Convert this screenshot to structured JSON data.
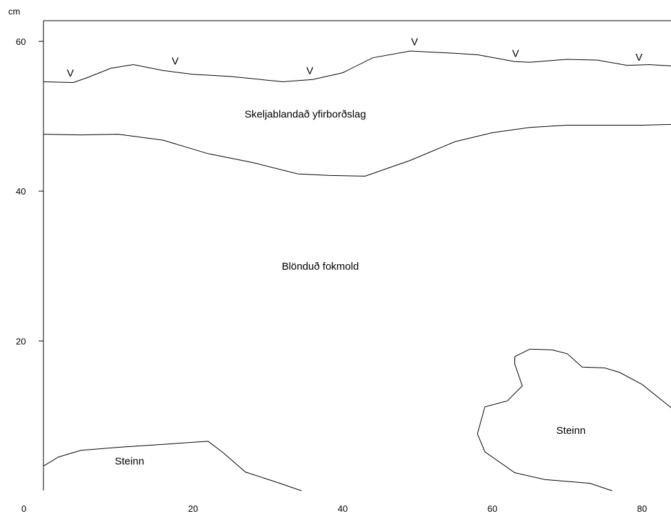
{
  "chart_data": {
    "type": "line",
    "ylabel": "cm",
    "x_ticks": [
      20,
      40,
      60,
      80
    ],
    "y_ticks": [
      20,
      40,
      60
    ],
    "origin_label": "0",
    "xlim": [
      0,
      84
    ],
    "ylim": [
      0,
      62
    ],
    "series": [
      {
        "x": [
          0,
          4,
          6,
          9,
          12,
          16,
          20,
          25,
          32,
          36,
          40,
          44,
          49,
          55,
          58,
          63,
          65,
          70,
          74,
          78,
          81,
          84
        ],
        "y": [
          54.6,
          54.5,
          55.2,
          56.4,
          56.9,
          56.1,
          55.6,
          55.3,
          54.6,
          54.9,
          55.8,
          57.8,
          58.7,
          58.4,
          58.2,
          57.3,
          57.2,
          57.6,
          57.5,
          56.8,
          56.9,
          56.7
        ]
      },
      {
        "x": [
          0,
          5,
          10,
          16,
          22,
          28,
          34,
          38,
          43,
          49,
          55,
          60,
          65,
          70,
          74,
          80,
          84
        ],
        "y": [
          47.6,
          47.5,
          47.6,
          46.8,
          45.0,
          43.8,
          42.3,
          42.1,
          42.0,
          44.1,
          46.6,
          47.8,
          48.5,
          48.8,
          48.8,
          48.8,
          48.9
        ]
      },
      {
        "x": [
          0,
          2,
          5,
          10,
          16,
          22,
          24,
          27,
          31,
          34.5
        ],
        "y": [
          3.3,
          4.5,
          5.4,
          5.8,
          6.2,
          6.6,
          5.1,
          2.5,
          1.2,
          0
        ]
      },
      {
        "x": [
          76,
          73,
          67,
          63,
          59,
          58,
          59,
          62,
          64,
          63,
          63,
          65,
          68,
          70,
          72,
          75,
          77,
          80,
          84
        ],
        "y": [
          0,
          1.0,
          1.5,
          2.4,
          5.2,
          7.6,
          11.2,
          12.0,
          14.0,
          16.9,
          17.9,
          18.9,
          18.8,
          18.3,
          16.5,
          16.4,
          15.8,
          14.2,
          11.0
        ]
      }
    ],
    "annotations": [
      {
        "text": "Skeljablandað yfirborðslag",
        "x": 35,
        "y": 49.8
      },
      {
        "text": "Blönduð fokmold",
        "x": 37,
        "y": 29.5
      },
      {
        "text": "Steinn",
        "x": 11.5,
        "y": 3.5
      },
      {
        "text": "Steinn",
        "x": 70.5,
        "y": 7.6
      }
    ],
    "markers": [
      {
        "text": "V",
        "x": 3.6,
        "y": 55.3
      },
      {
        "text": "V",
        "x": 17.6,
        "y": 56.9
      },
      {
        "text": "V",
        "x": 35.6,
        "y": 55.6
      },
      {
        "text": "V",
        "x": 49.6,
        "y": 59.5
      },
      {
        "text": "V",
        "x": 63.1,
        "y": 57.9
      },
      {
        "text": "V",
        "x": 79.6,
        "y": 57.4
      }
    ]
  }
}
